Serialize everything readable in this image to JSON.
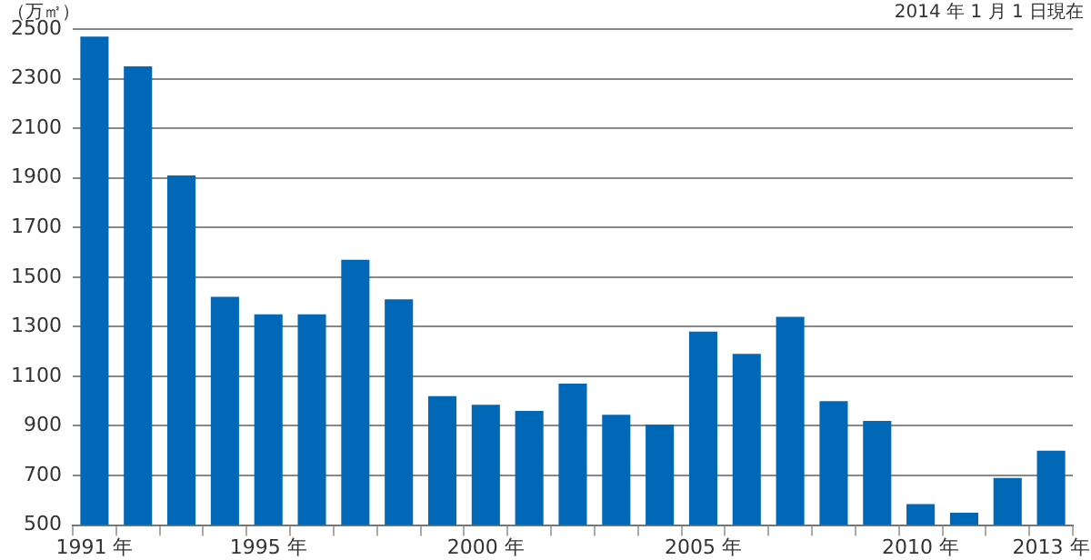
{
  "chart_data": {
    "type": "bar",
    "ylabel": "（万㎡）",
    "annotations": [
      "2014 年 1 月 1 日現在"
    ],
    "categories": [
      "1991 年",
      null,
      null,
      null,
      "1995 年",
      null,
      null,
      null,
      null,
      "2000 年",
      null,
      null,
      null,
      null,
      "2005 年",
      null,
      null,
      null,
      null,
      "2010 年",
      null,
      null,
      "2013 年"
    ],
    "values": [
      2470,
      2350,
      1910,
      1420,
      1350,
      1350,
      1570,
      1410,
      1020,
      985,
      960,
      1070,
      945,
      905,
      1280,
      1190,
      1340,
      1000,
      920,
      585,
      550,
      690,
      800
    ],
    "color": "#0068b7",
    "ylim": [
      500,
      2500
    ],
    "yticks": [
      500,
      700,
      900,
      1100,
      1300,
      1500,
      1700,
      1900,
      2100,
      2300,
      2500
    ],
    "grid": "y",
    "legend": false
  }
}
